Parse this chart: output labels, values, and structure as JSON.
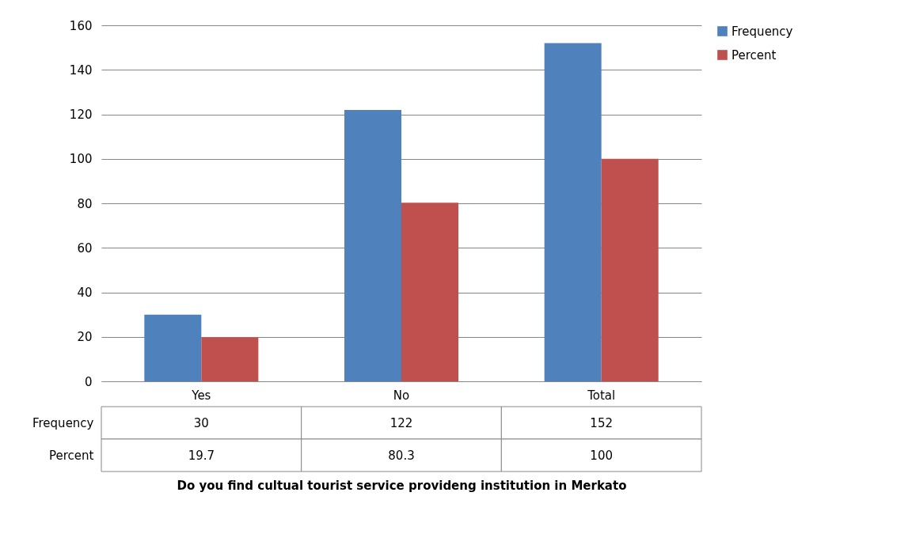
{
  "chart_data": {
    "type": "bar",
    "annotations": [
      "Do you find cultual tourist service provideng institution in Merkato"
    ],
    "categories": [
      "Yes",
      "No",
      "Total"
    ],
    "series": [
      {
        "name": "Frequency",
        "color": "#4f81bd",
        "values": [
          30,
          122,
          152
        ]
      },
      {
        "name": "Percent",
        "color": "#c0504d",
        "values": [
          19.7,
          80.3,
          100
        ]
      }
    ],
    "ylim": [
      0,
      160
    ],
    "yticks": [
      0,
      20,
      40,
      60,
      80,
      100,
      120,
      140,
      160
    ],
    "grid": "y",
    "legend": "right",
    "data_labels": true
  }
}
